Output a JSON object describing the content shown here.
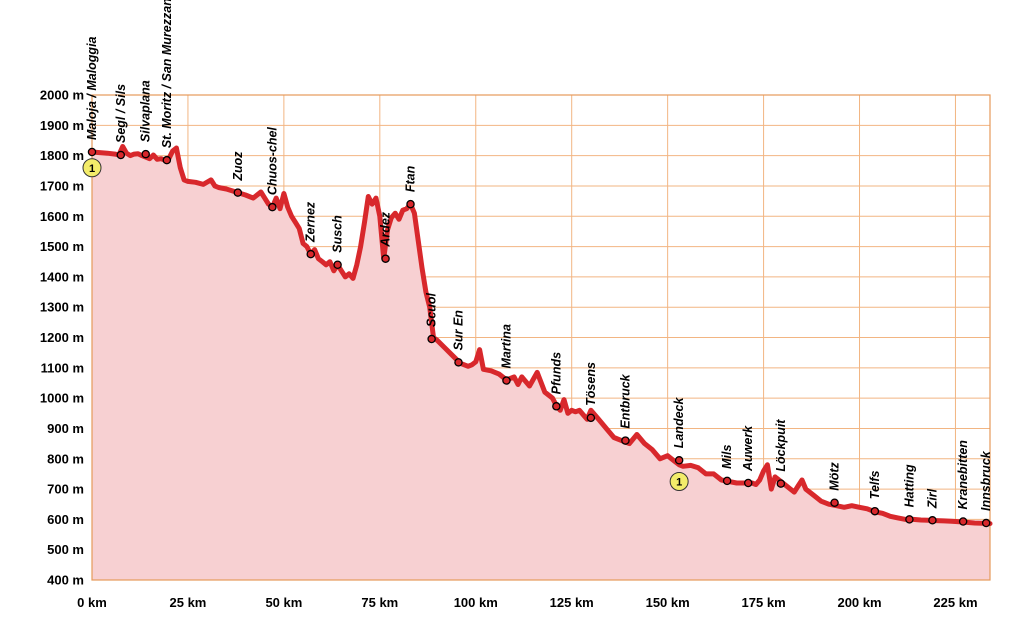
{
  "chart_data": {
    "type": "area",
    "title": "",
    "xlabel": "",
    "ylabel": "",
    "xlim": [
      0,
      234
    ],
    "ylim": [
      400,
      2000
    ],
    "x_ticks": [
      0,
      25,
      50,
      75,
      100,
      125,
      150,
      175,
      200,
      225
    ],
    "x_tick_labels": [
      "0 km",
      "25 km",
      "50 km",
      "75 km",
      "100 km",
      "125 km",
      "150 km",
      "175 km",
      "200 km",
      "225 km"
    ],
    "y_ticks": [
      400,
      500,
      600,
      700,
      800,
      900,
      1000,
      1100,
      1200,
      1300,
      1400,
      1500,
      1600,
      1700,
      1800,
      1900,
      2000
    ],
    "y_tick_labels": [
      "400 m",
      "500 m",
      "600 m",
      "700 m",
      "800 m",
      "900 m",
      "1000 m",
      "1100 m",
      "1200 m",
      "1300 m",
      "1400 m",
      "1500 m",
      "1600 m",
      "1700 m",
      "1800 m",
      "1900 m",
      "2000 m"
    ],
    "grid": true,
    "colors": {
      "line": "#d8282c",
      "fill": "#f7d0d2",
      "grid": "#f2b582",
      "badge": "#f3ec6a"
    },
    "series": [
      {
        "x": [
          0,
          2,
          4,
          6,
          7,
          8,
          9,
          10,
          11,
          12,
          13,
          14,
          15,
          16,
          17,
          18,
          19,
          20,
          21,
          22,
          23,
          24,
          25,
          27,
          29,
          31,
          32,
          33,
          35,
          37,
          38,
          40,
          42,
          44,
          45,
          46,
          47,
          48,
          49,
          50,
          51,
          52,
          53,
          54,
          55,
          56,
          57,
          58,
          59,
          60,
          61,
          62,
          63,
          64,
          65,
          66,
          67,
          68,
          69,
          70,
          71,
          72,
          73,
          74,
          75,
          76,
          77,
          78,
          79,
          80,
          81,
          82,
          83,
          84,
          85,
          86,
          87,
          88,
          89,
          90,
          92,
          94,
          96,
          98,
          99,
          100,
          101,
          102,
          104,
          106,
          108,
          110,
          111,
          112,
          114,
          116,
          118,
          120,
          121,
          122,
          123,
          124,
          125,
          126,
          127,
          128,
          129,
          130,
          132,
          134,
          136,
          138,
          139,
          140,
          142,
          144,
          146,
          148,
          150,
          151,
          152,
          153,
          154,
          156,
          158,
          160,
          162,
          164,
          166,
          168,
          170,
          172,
          173,
          174,
          175,
          176,
          177,
          178,
          180,
          182,
          183,
          184,
          185,
          186,
          188,
          190,
          192,
          194,
          196,
          198,
          200,
          202,
          204,
          206,
          208,
          210,
          212,
          214,
          216,
          218,
          220,
          222,
          224,
          226,
          228,
          230,
          232,
          234
        ],
        "y": [
          1812,
          1810,
          1808,
          1805,
          1802,
          1830,
          1808,
          1800,
          1805,
          1806,
          1800,
          1795,
          1790,
          1802,
          1788,
          1790,
          1785,
          1790,
          1815,
          1825,
          1760,
          1720,
          1715,
          1712,
          1705,
          1720,
          1700,
          1695,
          1690,
          1682,
          1678,
          1670,
          1660,
          1680,
          1660,
          1640,
          1630,
          1660,
          1625,
          1675,
          1630,
          1600,
          1580,
          1560,
          1510,
          1500,
          1475,
          1490,
          1460,
          1450,
          1440,
          1450,
          1420,
          1440,
          1420,
          1400,
          1410,
          1395,
          1440,
          1500,
          1580,
          1665,
          1640,
          1660,
          1600,
          1460,
          1555,
          1595,
          1610,
          1590,
          1620,
          1625,
          1640,
          1610,
          1520,
          1430,
          1350,
          1300,
          1200,
          1190,
          1165,
          1140,
          1115,
          1105,
          1110,
          1120,
          1160,
          1095,
          1090,
          1080,
          1060,
          1070,
          1045,
          1070,
          1040,
          1085,
          1020,
          1000,
          975,
          960,
          995,
          950,
          960,
          955,
          960,
          945,
          930,
          960,
          930,
          900,
          870,
          860,
          855,
          850,
          880,
          850,
          830,
          800,
          810,
          800,
          790,
          780,
          775,
          778,
          770,
          750,
          750,
          730,
          725,
          720,
          720,
          720,
          715,
          730,
          760,
          780,
          700,
          740,
          720,
          700,
          690,
          710,
          730,
          700,
          680,
          660,
          650,
          645,
          640,
          645,
          640,
          635,
          625,
          620,
          610,
          605,
          600,
          600,
          598,
          597,
          596,
          595,
          594,
          592,
          590,
          588,
          587,
          586
        ]
      }
    ],
    "annotations": [
      {
        "km": 0,
        "elev": 1812,
        "label": "Maloja / Maloggia"
      },
      {
        "km": 7.5,
        "elev": 1802,
        "label": "Segl / Sils"
      },
      {
        "km": 14,
        "elev": 1805,
        "label": "Silvaplana"
      },
      {
        "km": 19.5,
        "elev": 1785,
        "label": "St. Moritz / San Murezzan"
      },
      {
        "km": 38,
        "elev": 1678,
        "label": "Zuoz"
      },
      {
        "km": 47,
        "elev": 1630,
        "label": "Chuos-chel"
      },
      {
        "km": 57,
        "elev": 1475,
        "label": "Zernez"
      },
      {
        "km": 64,
        "elev": 1440,
        "label": "Susch"
      },
      {
        "km": 76.5,
        "elev": 1460,
        "label": "Ardez"
      },
      {
        "km": 83,
        "elev": 1640,
        "label": "Ftan"
      },
      {
        "km": 88.5,
        "elev": 1195,
        "label": "Scuol"
      },
      {
        "km": 95.5,
        "elev": 1118,
        "label": "Sur En"
      },
      {
        "km": 108,
        "elev": 1058,
        "label": "Martina"
      },
      {
        "km": 121,
        "elev": 973,
        "label": "Pfunds"
      },
      {
        "km": 130,
        "elev": 935,
        "label": "Tösens"
      },
      {
        "km": 139,
        "elev": 860,
        "label": "Entbruck"
      },
      {
        "km": 153,
        "elev": 795,
        "label": "Landeck"
      },
      {
        "km": 165.5,
        "elev": 727,
        "label": "Mils"
      },
      {
        "km": 171,
        "elev": 720,
        "label": "Auwerk"
      },
      {
        "km": 179.5,
        "elev": 718,
        "label": "Löckpuit"
      },
      {
        "km": 193.5,
        "elev": 655,
        "label": "Mötz"
      },
      {
        "km": 204,
        "elev": 627,
        "label": "Telfs"
      },
      {
        "km": 213,
        "elev": 600,
        "label": "Hatting"
      },
      {
        "km": 219,
        "elev": 597,
        "label": "Zirl"
      },
      {
        "km": 227,
        "elev": 593,
        "label": "Kranebitten"
      },
      {
        "km": 233,
        "elev": 588,
        "label": "Innsbruck"
      }
    ],
    "badges": [
      {
        "km": 0,
        "elev": 1760,
        "label": "1"
      },
      {
        "km": 153,
        "elev": 725,
        "label": "1"
      }
    ]
  }
}
